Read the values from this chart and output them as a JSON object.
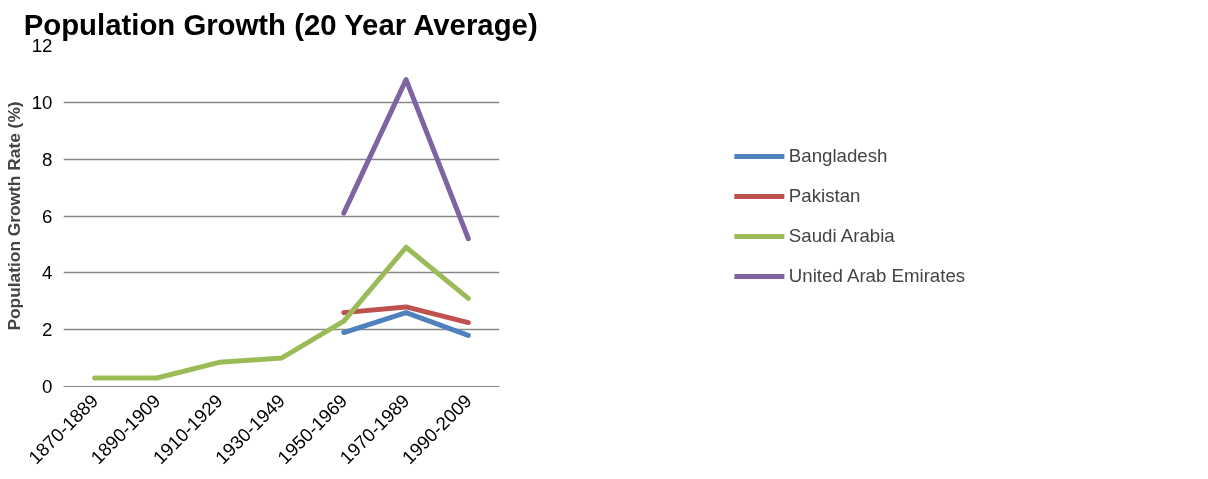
{
  "chart_data": {
    "type": "line",
    "title": "Population Growth (20 Year Average)",
    "ylabel": "Population Growth Rate (%)",
    "categories": [
      "1870-1889",
      "1890-1909",
      "1910-1929",
      "1930-1949",
      "1950-1969",
      "1970-1989",
      "1990-2009"
    ],
    "series": [
      {
        "name": "Bangladesh",
        "color": "#4f81bd",
        "values": [
          null,
          null,
          null,
          null,
          1.9,
          2.6,
          1.8
        ]
      },
      {
        "name": "Pakistan",
        "color": "#c0504d",
        "values": [
          null,
          null,
          null,
          null,
          2.6,
          2.8,
          2.25
        ]
      },
      {
        "name": "Saudi Arabia",
        "color": "#9bbb59",
        "values": [
          0.3,
          0.3,
          0.85,
          1.0,
          2.3,
          4.9,
          3.1
        ]
      },
      {
        "name": "United Arab Emirates",
        "color": "#8064a2",
        "values": [
          null,
          null,
          null,
          null,
          6.1,
          10.8,
          5.2
        ]
      }
    ],
    "ylim": [
      0,
      12
    ],
    "yticks": [
      0,
      2,
      4,
      6,
      8,
      10,
      12
    ],
    "grid": "y",
    "legend": "right",
    "line_style": "solid"
  }
}
